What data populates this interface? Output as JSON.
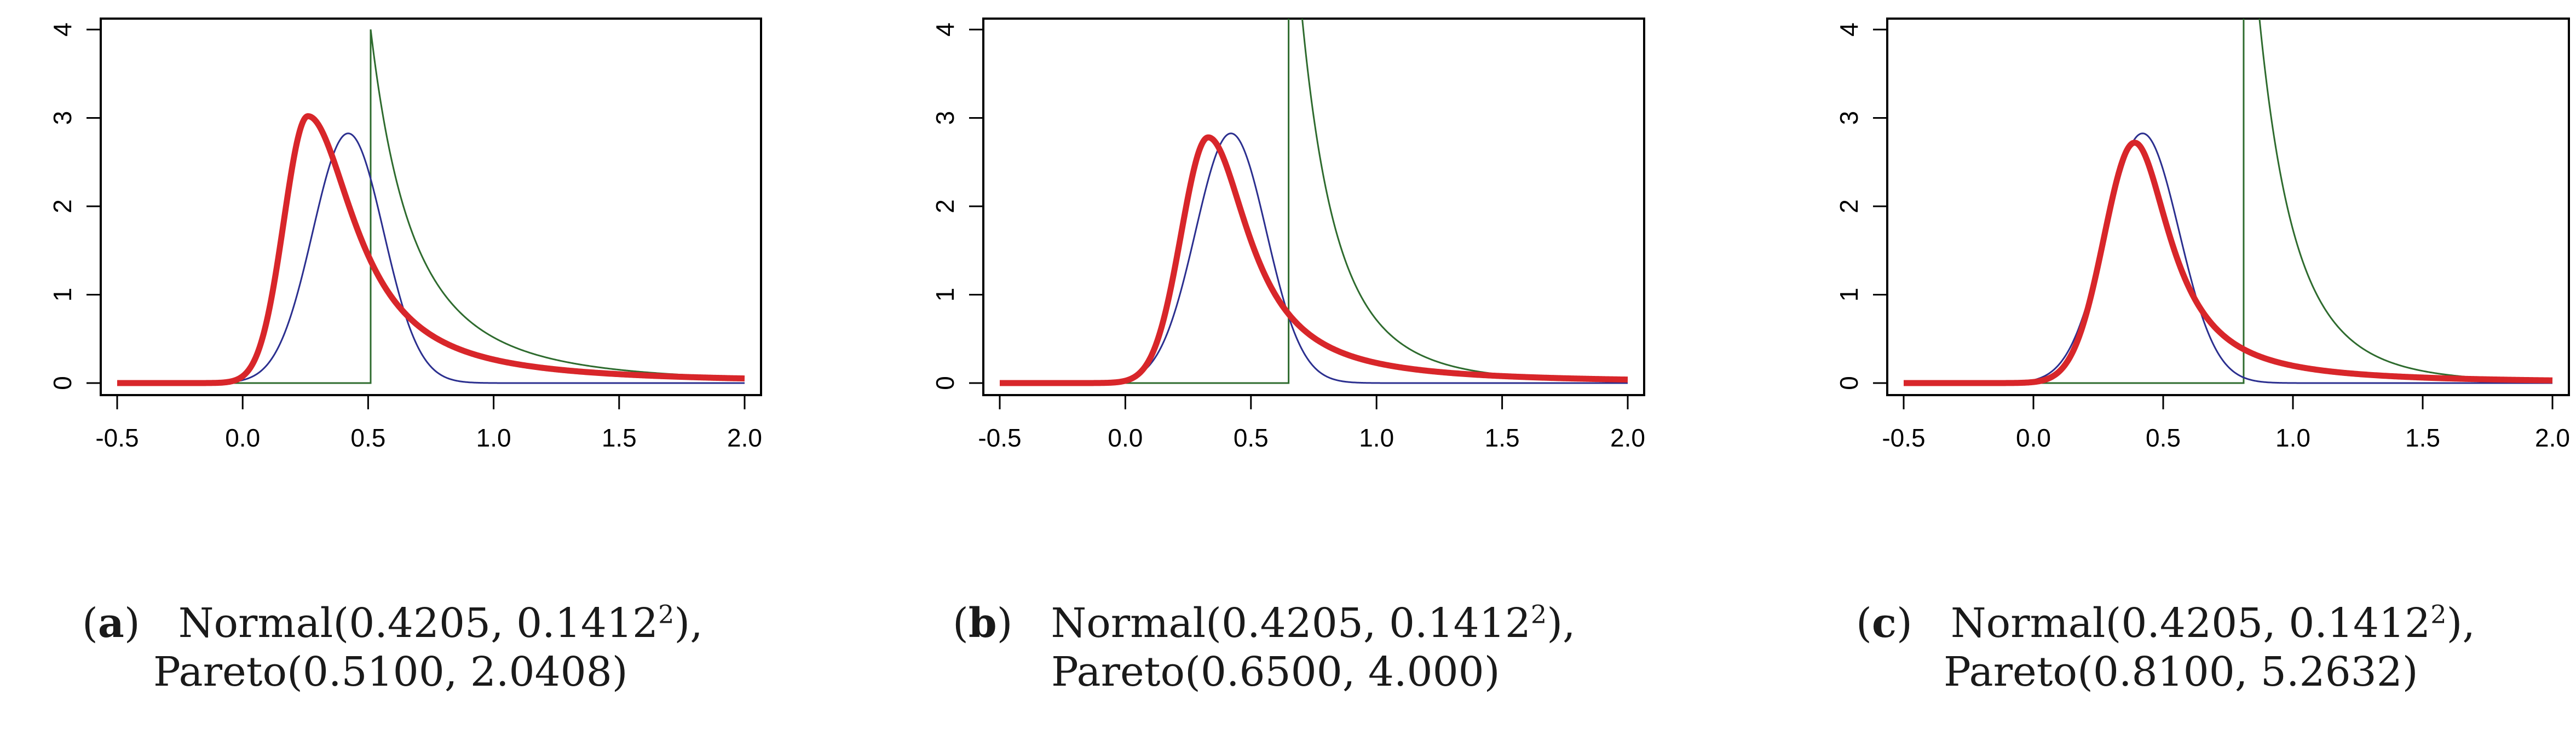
{
  "chart_data": [
    {
      "type": "line",
      "panel_label": "a",
      "caption_line1": "Normal(0.4205, 0.1412",
      "caption_sup": "2",
      "caption_line1_end": "),",
      "caption_line2": "Pareto(0.5100, 2.0408)",
      "xlim": [
        -0.5,
        2.0
      ],
      "ylim": [
        0,
        4
      ],
      "x_ticks": [
        "-0.5",
        "0.0",
        "0.5",
        "1.0",
        "1.5",
        "2.0"
      ],
      "y_ticks": [
        "0",
        "1",
        "2",
        "3",
        "4"
      ],
      "grid": false,
      "legend": "none",
      "normal": {
        "mean": 0.4205,
        "sd": 0.1412,
        "color": "#2b2f8f"
      },
      "pareto": {
        "xm": 0.51,
        "alpha": 2.0408,
        "color": "#2e6b2e"
      },
      "mixture": {
        "peak_x": 0.26,
        "peak_y": 3.02,
        "sd_left": 0.096,
        "tail_scale": 0.23,
        "color": "#d8262a"
      }
    },
    {
      "type": "line",
      "panel_label": "b",
      "caption_line1": "Normal(0.4205, 0.1412",
      "caption_sup": "2",
      "caption_line1_end": "),",
      "caption_line2": "Pareto(0.6500, 4.000)",
      "xlim": [
        -0.5,
        2.0
      ],
      "ylim": [
        0,
        4
      ],
      "x_ticks": [
        "-0.5",
        "0.0",
        "0.5",
        "1.0",
        "1.5",
        "2.0"
      ],
      "y_ticks": [
        "0",
        "1",
        "2",
        "3",
        "4"
      ],
      "grid": false,
      "legend": "none",
      "normal": {
        "mean": 0.4205,
        "sd": 0.1412,
        "color": "#2b2f8f"
      },
      "pareto": {
        "xm": 0.65,
        "alpha": 4.0,
        "color": "#2e6b2e"
      },
      "mixture": {
        "peak_x": 0.33,
        "peak_y": 2.78,
        "sd_left": 0.108,
        "tail_scale": 0.2,
        "color": "#d8262a"
      }
    },
    {
      "type": "line",
      "panel_label": "c",
      "caption_line1": "Normal(0.4205, 0.1412",
      "caption_sup": "2",
      "caption_line1_end": "),",
      "caption_line2": "Pareto(0.8100, 5.2632)",
      "xlim": [
        -0.5,
        2.0
      ],
      "ylim": [
        0,
        4
      ],
      "x_ticks": [
        "-0.5",
        "0.0",
        "0.5",
        "1.0",
        "1.5",
        "2.0"
      ],
      "y_ticks": [
        "0",
        "1",
        "2",
        "3",
        "4"
      ],
      "grid": false,
      "legend": "none",
      "normal": {
        "mean": 0.4205,
        "sd": 0.1412,
        "color": "#2b2f8f"
      },
      "pareto": {
        "xm": 0.81,
        "alpha": 5.2632,
        "color": "#2e6b2e"
      },
      "mixture": {
        "peak_x": 0.39,
        "peak_y": 2.72,
        "sd_left": 0.118,
        "tail_scale": 0.17,
        "color": "#d8262a"
      }
    }
  ]
}
